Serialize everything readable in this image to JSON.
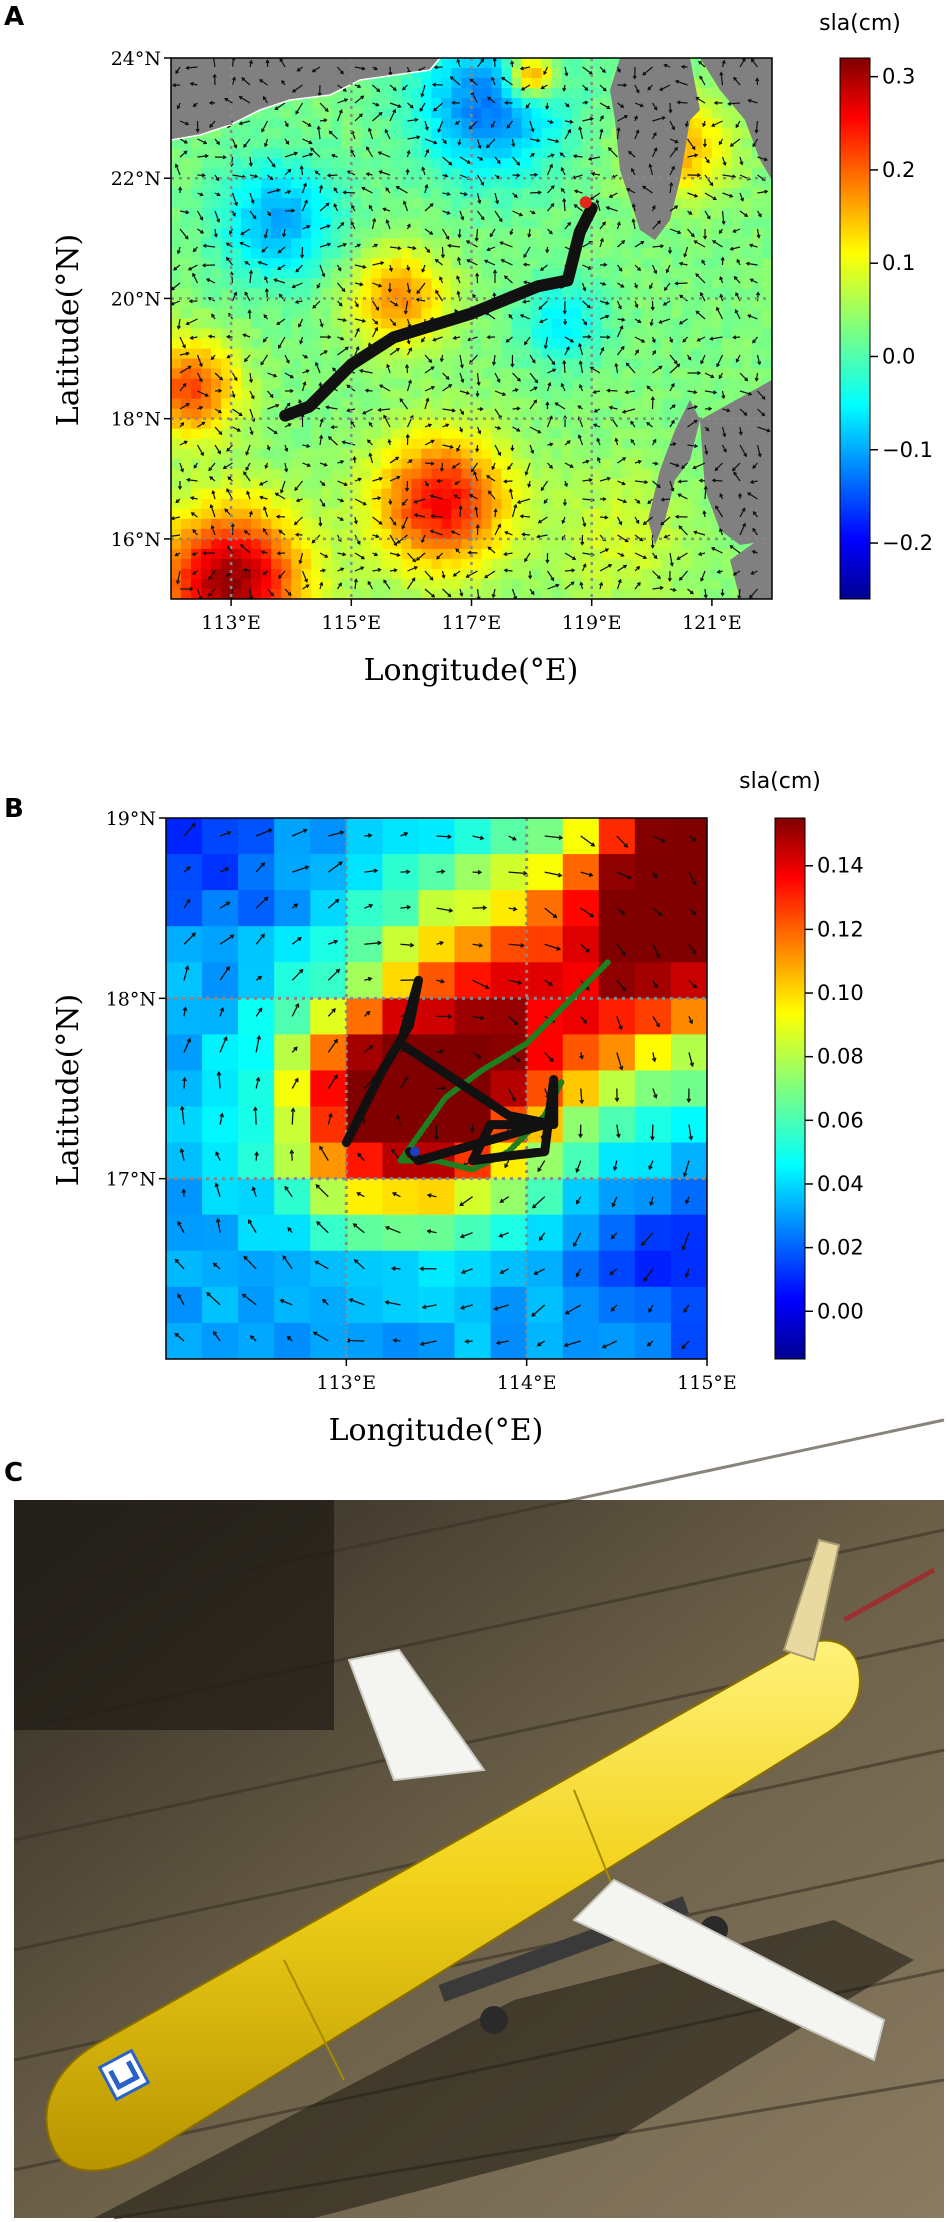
{
  "panels": {
    "a": {
      "letter": "A",
      "xlabel": "Longitude(°E)",
      "ylabel": "Latitude(°N)",
      "colorbar_title": "sla(cm)",
      "x_ticks": [
        "113°E",
        "115°E",
        "117°E",
        "119°E",
        "121°E"
      ],
      "y_ticks": [
        "24°N",
        "22°N",
        "20°N",
        "18°N",
        "16°N"
      ],
      "colorbar_ticks": [
        "0.3",
        "0.2",
        "0.1",
        "0.0",
        "−0.1",
        "−0.2"
      ],
      "colorbar_range": [
        -0.26,
        0.32
      ],
      "lon_range": [
        112,
        122
      ],
      "lat_range": [
        15,
        24
      ],
      "track_color": "#111111",
      "track": [
        [
          113.9,
          18.05
        ],
        [
          114.3,
          18.2
        ],
        [
          115.0,
          18.9
        ],
        [
          115.7,
          19.35
        ],
        [
          117.0,
          19.75
        ],
        [
          118.1,
          20.2
        ],
        [
          118.6,
          20.3
        ],
        [
          118.8,
          21.1
        ],
        [
          119.0,
          21.5
        ]
      ],
      "start_marker": {
        "lon": 118.9,
        "lat": 21.6,
        "color": "#e0281c"
      }
    },
    "b": {
      "letter": "B",
      "xlabel": "Longitude(°E)",
      "ylabel": "Latitude(°N)",
      "colorbar_title": "sla(cm)",
      "x_ticks": [
        "113°E",
        "114°E",
        "115°E"
      ],
      "y_ticks": [
        "19°N",
        "18°N",
        "17°N"
      ],
      "colorbar_ticks": [
        "0.14",
        "0.12",
        "0.10",
        "0.08",
        "0.06",
        "0.04",
        "0.02",
        "0.00"
      ],
      "colorbar_range": [
        -0.015,
        0.155
      ],
      "lon_range": [
        112.0,
        115.0
      ],
      "lat_range": [
        16.0,
        19.0
      ],
      "black_track_color": "#111111",
      "green_track_color": "#1f7f1f",
      "black_track": [
        [
          113.0,
          17.2
        ],
        [
          113.2,
          17.6
        ],
        [
          113.35,
          17.85
        ],
        [
          113.4,
          18.1
        ],
        [
          113.3,
          17.75
        ],
        [
          113.6,
          17.55
        ],
        [
          113.9,
          17.35
        ],
        [
          114.15,
          17.3
        ],
        [
          114.15,
          17.55
        ],
        [
          114.1,
          17.15
        ],
        [
          113.85,
          17.12
        ],
        [
          113.7,
          17.1
        ],
        [
          113.8,
          17.3
        ],
        [
          114.1,
          17.3
        ],
        [
          113.4,
          17.1
        ],
        [
          113.35,
          17.15
        ]
      ],
      "green_track": [
        [
          114.45,
          18.2
        ],
        [
          114.2,
          17.95
        ],
        [
          114.0,
          17.75
        ],
        [
          113.75,
          17.6
        ],
        [
          113.55,
          17.45
        ],
        [
          113.3,
          17.1
        ],
        [
          113.5,
          17.1
        ],
        [
          113.7,
          17.05
        ],
        [
          113.9,
          17.15
        ],
        [
          114.1,
          17.35
        ],
        [
          114.2,
          17.55
        ]
      ],
      "start_marker": {
        "lon": 113.38,
        "lat": 17.15,
        "color": "#1f3fbf"
      }
    },
    "c": {
      "letter": "C",
      "glider_body_color": "#f2d21a",
      "glider_fin_color": "#f4f4f0",
      "deck_color": "#4a4030"
    }
  }
}
